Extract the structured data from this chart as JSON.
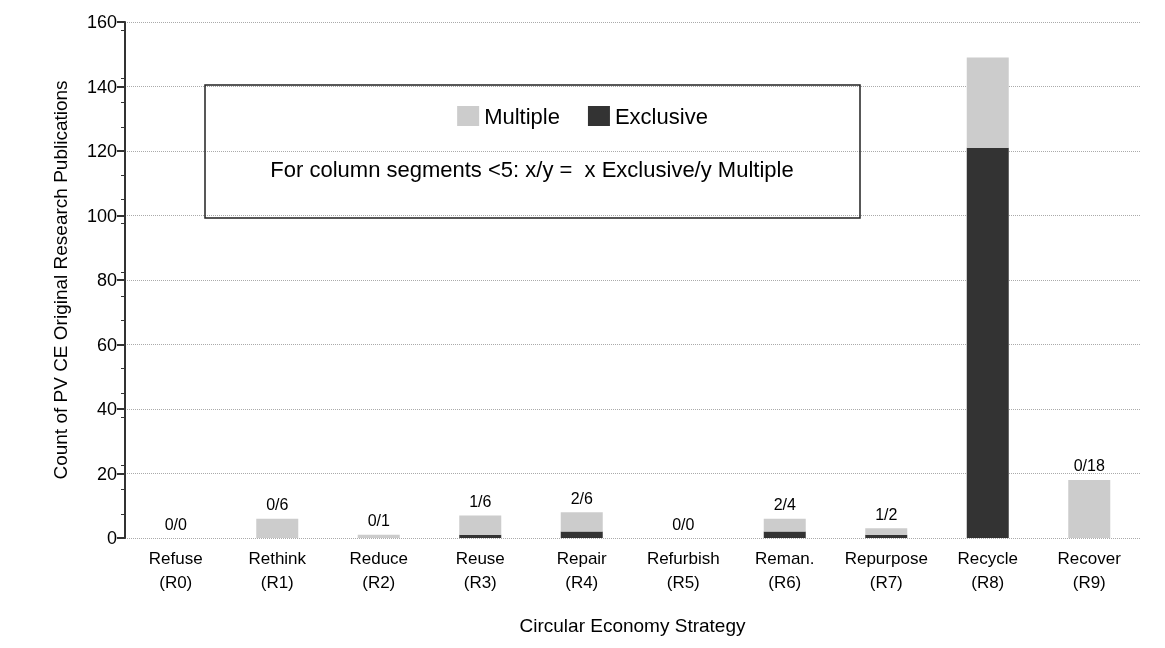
{
  "chart_data": {
    "type": "bar",
    "stacked": true,
    "xlabel": "Circular Economy Strategy",
    "ylabel": "Count of PV CE Original Research Publications",
    "categories": [
      "Refuse\n(R0)",
      "Rethink\n(R1)",
      "Reduce\n(R2)",
      "Reuse\n(R3)",
      "Repair\n(R4)",
      "Refurbish\n(R5)",
      "Reman.\n(R6)",
      "Repurpose\n(R7)",
      "Recycle\n(R8)",
      "Recover\n(R9)"
    ],
    "series": [
      {
        "name": "Exclusive",
        "color": "#333333",
        "values": [
          0,
          0,
          0,
          1,
          2,
          0,
          2,
          1,
          121,
          0
        ]
      },
      {
        "name": "Multiple",
        "color": "#cccccc",
        "values": [
          0,
          6,
          1,
          6,
          6,
          0,
          4,
          2,
          28,
          18
        ]
      }
    ],
    "ylim": [
      0,
      160
    ],
    "yticks": [
      0,
      20,
      40,
      60,
      80,
      100,
      120,
      140,
      160
    ],
    "grid": "y",
    "legend": "top",
    "annotations": [
      "For column segments <5: x/y =  x Exclusive/y Multiple",
      {
        "text": "0/0",
        "x": "Refuse\n(R0)",
        "y": 0
      },
      {
        "text": "0/6",
        "x": "Rethink\n(R1)",
        "y": 6
      },
      {
        "text": "0/1",
        "x": "Reduce\n(R2)",
        "y": 1
      },
      {
        "text": "1/6",
        "x": "Reuse\n(R3)",
        "y": 7
      },
      {
        "text": "2/6",
        "x": "Repair\n(R4)",
        "y": 8
      },
      {
        "text": "0/0",
        "x": "Refurbish\n(R5)",
        "y": 0
      },
      {
        "text": "2/4",
        "x": "Reman.\n(R6)",
        "y": 6
      },
      {
        "text": "1/2",
        "x": "Repurpose\n(R7)",
        "y": 3
      },
      {
        "text": "0/18",
        "x": "Recover\n(R9)",
        "y": 18
      }
    ]
  }
}
